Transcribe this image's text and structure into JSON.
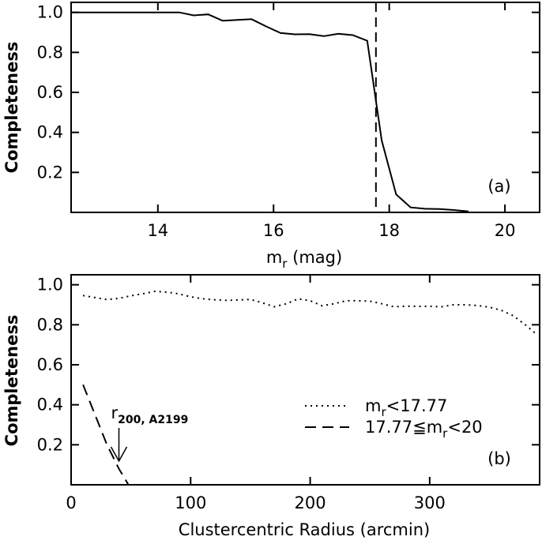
{
  "chart_data": [
    {
      "type": "line",
      "panel_label": "(a)",
      "xlabel": "m",
      "xlabel_sub": "r",
      "xlabel_unit": " (mag)",
      "ylabel": "Completeness",
      "xlim": [
        12.5,
        20.6
      ],
      "ylim": [
        0.0,
        1.05
      ],
      "xticks": [
        14,
        16,
        18,
        20
      ],
      "yticks": [
        0.2,
        0.4,
        0.6,
        0.8,
        1.0
      ],
      "xtick_labels": [
        "14",
        "16",
        "18",
        "20"
      ],
      "ytick_labels": [
        "0.2",
        "0.4",
        "0.6",
        "0.8",
        "1.0"
      ],
      "grid": false,
      "series": [
        {
          "style": "solid",
          "x": [
            12.5,
            13.0,
            13.6,
            14.1,
            14.37,
            14.62,
            14.87,
            15.12,
            15.37,
            15.62,
            15.87,
            16.12,
            16.37,
            16.62,
            16.87,
            17.12,
            17.37,
            17.62,
            17.87,
            18.12,
            18.37,
            18.62,
            18.87,
            19.12,
            19.37
          ],
          "y": [
            1.0,
            1.0,
            1.0,
            1.0,
            1.0,
            0.985,
            0.99,
            0.958,
            0.962,
            0.966,
            0.93,
            0.897,
            0.89,
            0.891,
            0.881,
            0.893,
            0.886,
            0.858,
            0.36,
            0.09,
            0.025,
            0.018,
            0.017,
            0.012,
            0.005
          ]
        }
      ],
      "vline": {
        "x": 17.77,
        "style": "dashed"
      }
    },
    {
      "type": "line",
      "panel_label": "(b)",
      "xlabel": "Clustercentric Radius (arcmin)",
      "ylabel": "Completeness",
      "xlim": [
        0,
        392
      ],
      "ylim": [
        0.0,
        1.05
      ],
      "xticks": [
        0,
        100,
        200,
        300
      ],
      "yticks": [
        0.2,
        0.4,
        0.6,
        0.8,
        1.0
      ],
      "xtick_labels": [
        "0",
        "100",
        "200",
        "300"
      ],
      "ytick_labels": [
        "0.2",
        "0.4",
        "0.6",
        "0.8",
        "1.0"
      ],
      "grid": false,
      "series": [
        {
          "name_parts": [
            "m",
            "r",
            "<17.77"
          ],
          "style": "dotted",
          "x": [
            10,
            20,
            30,
            40,
            50,
            60,
            70,
            80,
            90,
            100,
            110,
            120,
            130,
            140,
            150,
            160,
            170,
            180,
            190,
            200,
            210,
            220,
            230,
            240,
            250,
            260,
            270,
            280,
            290,
            300,
            310,
            320,
            330,
            340,
            350,
            360,
            370,
            380,
            388
          ],
          "y": [
            0.946,
            0.936,
            0.926,
            0.932,
            0.945,
            0.955,
            0.967,
            0.963,
            0.955,
            0.94,
            0.93,
            0.925,
            0.922,
            0.924,
            0.927,
            0.91,
            0.89,
            0.905,
            0.93,
            0.92,
            0.895,
            0.905,
            0.92,
            0.92,
            0.918,
            0.905,
            0.89,
            0.893,
            0.892,
            0.892,
            0.89,
            0.9,
            0.9,
            0.896,
            0.888,
            0.872,
            0.845,
            0.8,
            0.76
          ]
        },
        {
          "name_parts": [
            "17.77≦m",
            "r",
            "<20"
          ],
          "style": "dashed",
          "x": [
            10,
            20,
            30,
            40,
            48
          ],
          "y": [
            0.5,
            0.35,
            0.2,
            0.08,
            0.0
          ]
        }
      ],
      "annotation": {
        "text": "r",
        "sub": "200, A2199",
        "x": 40
      }
    }
  ]
}
